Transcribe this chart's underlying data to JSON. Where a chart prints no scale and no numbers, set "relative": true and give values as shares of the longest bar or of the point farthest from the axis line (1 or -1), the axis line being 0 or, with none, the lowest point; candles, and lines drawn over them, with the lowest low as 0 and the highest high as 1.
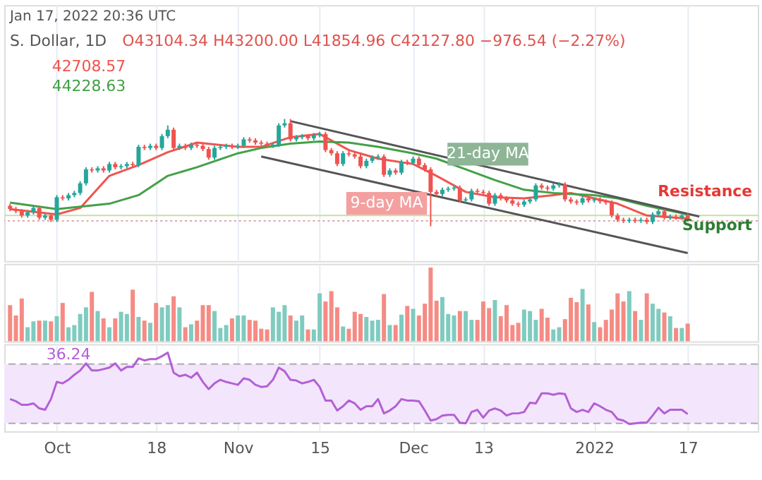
{
  "chart_data": [
    {
      "type": "candlestick",
      "relative": true,
      "grid": "x",
      "tick_labels": false,
      "xlim": [
        "2021-09-22",
        "2022-01-29"
      ],
      "xticks": [
        {
          "value": "2021-10-01",
          "label": null
        },
        {
          "value": "2021-10-18",
          "label": null
        },
        {
          "value": "2021-11-01",
          "label": null
        },
        {
          "value": "2021-11-15",
          "label": null
        },
        {
          "value": "2021-12-01",
          "label": null
        },
        {
          "value": "2021-12-13",
          "label": null
        },
        {
          "value": "2022-01-01",
          "label": null
        },
        {
          "value": "2022-01-17",
          "label": null
        }
      ],
      "x": [
        "2021-09-23",
        "2021-09-24",
        "2021-09-25",
        "2021-09-26",
        "2021-09-27",
        "2021-09-28",
        "2021-09-29",
        "2021-09-30",
        "2021-10-01",
        "2021-10-02",
        "2021-10-03",
        "2021-10-04",
        "2021-10-05",
        "2021-10-06",
        "2021-10-07",
        "2021-10-08",
        "2021-10-09",
        "2021-10-10",
        "2021-10-11",
        "2021-10-12",
        "2021-10-13",
        "2021-10-14",
        "2021-10-15",
        "2021-10-16",
        "2021-10-17",
        "2021-10-18",
        "2021-10-19",
        "2021-10-20",
        "2021-10-21",
        "2021-10-22",
        "2021-10-23",
        "2021-10-24",
        "2021-10-25",
        "2021-10-26",
        "2021-10-27",
        "2021-10-28",
        "2021-10-29",
        "2021-10-30",
        "2021-10-31",
        "2021-11-01",
        "2021-11-02",
        "2021-11-03",
        "2021-11-04",
        "2021-11-05",
        "2021-11-06",
        "2021-11-07",
        "2021-11-08",
        "2021-11-09",
        "2021-11-10",
        "2021-11-11",
        "2021-11-12",
        "2021-11-13",
        "2021-11-14",
        "2021-11-15",
        "2021-11-16",
        "2021-11-17",
        "2021-11-18",
        "2021-11-19",
        "2021-11-20",
        "2021-11-21",
        "2021-11-22",
        "2021-11-23",
        "2021-11-24",
        "2021-11-25",
        "2021-11-26",
        "2021-11-27",
        "2021-11-28",
        "2021-11-29",
        "2021-11-30",
        "2021-12-01",
        "2021-12-02",
        "2021-12-03",
        "2021-12-04",
        "2021-12-05",
        "2021-12-06",
        "2021-12-07",
        "2021-12-08",
        "2021-12-09",
        "2021-12-10",
        "2021-12-11",
        "2021-12-12",
        "2021-12-13",
        "2021-12-14",
        "2021-12-15",
        "2021-12-16",
        "2021-12-17",
        "2021-12-18",
        "2021-12-19",
        "2021-12-20",
        "2021-12-21",
        "2021-12-22",
        "2021-12-23",
        "2021-12-24",
        "2021-12-25",
        "2021-12-26",
        "2021-12-27",
        "2021-12-28",
        "2021-12-29",
        "2021-12-30",
        "2021-12-31",
        "2022-01-01",
        "2022-01-02",
        "2022-01-03",
        "2022-01-04",
        "2022-01-05",
        "2022-01-06",
        "2022-01-07",
        "2022-01-08",
        "2022-01-09",
        "2022-01-10",
        "2022-01-11",
        "2022-01-12",
        "2022-01-13",
        "2022-01-14",
        "2022-01-15",
        "2022-01-16",
        "2022-01-17"
      ],
      "ohlc": [
        [
          0.19,
          0.21,
          0.14,
          0.16
        ],
        [
          0.16,
          0.18,
          0.12,
          0.14
        ],
        [
          0.14,
          0.16,
          0.08,
          0.1
        ],
        [
          0.1,
          0.15,
          0.08,
          0.13
        ],
        [
          0.13,
          0.19,
          0.11,
          0.17
        ],
        [
          0.17,
          0.19,
          0.06,
          0.08
        ],
        [
          0.08,
          0.12,
          0.06,
          0.1
        ],
        [
          0.1,
          0.12,
          0.04,
          0.06
        ],
        [
          0.06,
          0.29,
          0.04,
          0.27
        ],
        [
          0.27,
          0.29,
          0.24,
          0.26
        ],
        [
          0.26,
          0.31,
          0.24,
          0.29
        ],
        [
          0.29,
          0.33,
          0.27,
          0.31
        ],
        [
          0.31,
          0.42,
          0.29,
          0.4
        ],
        [
          0.4,
          0.55,
          0.38,
          0.53
        ],
        [
          0.53,
          0.55,
          0.5,
          0.52
        ],
        [
          0.52,
          0.56,
          0.5,
          0.54
        ],
        [
          0.54,
          0.56,
          0.5,
          0.52
        ],
        [
          0.52,
          0.6,
          0.5,
          0.58
        ],
        [
          0.58,
          0.6,
          0.53,
          0.55
        ],
        [
          0.55,
          0.58,
          0.53,
          0.56
        ],
        [
          0.56,
          0.6,
          0.54,
          0.58
        ],
        [
          0.58,
          0.6,
          0.55,
          0.57
        ],
        [
          0.57,
          0.76,
          0.55,
          0.74
        ],
        [
          0.74,
          0.76,
          0.71,
          0.73
        ],
        [
          0.73,
          0.77,
          0.71,
          0.75
        ],
        [
          0.75,
          0.77,
          0.71,
          0.73
        ],
        [
          0.73,
          0.86,
          0.71,
          0.84
        ],
        [
          0.84,
          0.94,
          0.82,
          0.9
        ],
        [
          0.9,
          0.92,
          0.71,
          0.73
        ],
        [
          0.73,
          0.77,
          0.71,
          0.75
        ],
        [
          0.75,
          0.77,
          0.71,
          0.73
        ],
        [
          0.73,
          0.78,
          0.71,
          0.76
        ],
        [
          0.76,
          0.78,
          0.73,
          0.75
        ],
        [
          0.75,
          0.77,
          0.7,
          0.72
        ],
        [
          0.72,
          0.74,
          0.62,
          0.64
        ],
        [
          0.64,
          0.75,
          0.62,
          0.73
        ],
        [
          0.73,
          0.76,
          0.71,
          0.74
        ],
        [
          0.74,
          0.77,
          0.72,
          0.75
        ],
        [
          0.75,
          0.77,
          0.72,
          0.74
        ],
        [
          0.74,
          0.77,
          0.72,
          0.75
        ],
        [
          0.75,
          0.83,
          0.73,
          0.81
        ],
        [
          0.81,
          0.83,
          0.78,
          0.8
        ],
        [
          0.8,
          0.82,
          0.76,
          0.78
        ],
        [
          0.78,
          0.8,
          0.75,
          0.77
        ],
        [
          0.77,
          0.79,
          0.73,
          0.75
        ],
        [
          0.75,
          0.78,
          0.73,
          0.76
        ],
        [
          0.76,
          0.96,
          0.74,
          0.94
        ],
        [
          0.94,
          1.0,
          0.92,
          0.96
        ],
        [
          0.96,
          1.0,
          0.79,
          0.81
        ],
        [
          0.81,
          0.85,
          0.79,
          0.83
        ],
        [
          0.83,
          0.86,
          0.81,
          0.84
        ],
        [
          0.84,
          0.86,
          0.8,
          0.82
        ],
        [
          0.82,
          0.87,
          0.8,
          0.85
        ],
        [
          0.85,
          0.88,
          0.83,
          0.86
        ],
        [
          0.86,
          0.88,
          0.69,
          0.71
        ],
        [
          0.71,
          0.73,
          0.66,
          0.68
        ],
        [
          0.68,
          0.7,
          0.56,
          0.58
        ],
        [
          0.58,
          0.7,
          0.56,
          0.68
        ],
        [
          0.68,
          0.7,
          0.65,
          0.67
        ],
        [
          0.67,
          0.69,
          0.63,
          0.65
        ],
        [
          0.65,
          0.67,
          0.54,
          0.56
        ],
        [
          0.56,
          0.63,
          0.54,
          0.61
        ],
        [
          0.61,
          0.66,
          0.59,
          0.64
        ],
        [
          0.64,
          0.67,
          0.62,
          0.65
        ],
        [
          0.65,
          0.67,
          0.46,
          0.48
        ],
        [
          0.48,
          0.54,
          0.46,
          0.52
        ],
        [
          0.52,
          0.54,
          0.48,
          0.5
        ],
        [
          0.5,
          0.62,
          0.48,
          0.6
        ],
        [
          0.6,
          0.62,
          0.57,
          0.59
        ],
        [
          0.59,
          0.65,
          0.57,
          0.63
        ],
        [
          0.63,
          0.65,
          0.55,
          0.57
        ],
        [
          0.57,
          0.59,
          0.51,
          0.53
        ],
        [
          0.53,
          0.55,
          0,
          0.32
        ],
        [
          0.32,
          0.34,
          0.28,
          0.3
        ],
        [
          0.3,
          0.36,
          0.28,
          0.34
        ],
        [
          0.34,
          0.37,
          0.32,
          0.35
        ],
        [
          0.35,
          0.38,
          0.33,
          0.36
        ],
        [
          0.36,
          0.38,
          0.22,
          0.24
        ],
        [
          0.24,
          0.27,
          0.22,
          0.25
        ],
        [
          0.25,
          0.35,
          0.23,
          0.33
        ],
        [
          0.33,
          0.35,
          0.3,
          0.32
        ],
        [
          0.32,
          0.34,
          0.29,
          0.31
        ],
        [
          0.31,
          0.33,
          0.19,
          0.21
        ],
        [
          0.21,
          0.31,
          0.19,
          0.29
        ],
        [
          0.29,
          0.31,
          0.24,
          0.26
        ],
        [
          0.26,
          0.28,
          0.22,
          0.24
        ],
        [
          0.24,
          0.26,
          0.19,
          0.21
        ],
        [
          0.21,
          0.23,
          0.18,
          0.2
        ],
        [
          0.2,
          0.25,
          0.18,
          0.23
        ],
        [
          0.23,
          0.27,
          0.21,
          0.25
        ],
        [
          0.25,
          0.4,
          0.23,
          0.38
        ],
        [
          0.38,
          0.4,
          0.34,
          0.36
        ],
        [
          0.36,
          0.38,
          0.33,
          0.35
        ],
        [
          0.35,
          0.4,
          0.33,
          0.38
        ],
        [
          0.38,
          0.41,
          0.36,
          0.39
        ],
        [
          0.39,
          0.41,
          0.23,
          0.25
        ],
        [
          0.25,
          0.27,
          0.21,
          0.23
        ],
        [
          0.23,
          0.25,
          0.2,
          0.22
        ],
        [
          0.22,
          0.28,
          0.2,
          0.26
        ],
        [
          0.26,
          0.28,
          0.22,
          0.24
        ],
        [
          0.24,
          0.27,
          0.22,
          0.25
        ],
        [
          0.25,
          0.27,
          0.21,
          0.23
        ],
        [
          0.23,
          0.25,
          0.2,
          0.22
        ],
        [
          0.22,
          0.24,
          0.08,
          0.1
        ],
        [
          0.1,
          0.12,
          0.04,
          0.06
        ],
        [
          0.06,
          0.08,
          0.03,
          0.05
        ],
        [
          0.05,
          0.08,
          0.03,
          0.06
        ],
        [
          0.06,
          0.08,
          0.03,
          0.05
        ],
        [
          0.05,
          0.08,
          0.03,
          0.06
        ],
        [
          0.06,
          0.08,
          0.02,
          0.04
        ],
        [
          0.04,
          0.13,
          0.02,
          0.11
        ],
        [
          0.11,
          0.16,
          0.09,
          0.14
        ],
        [
          0.14,
          0.16,
          0.06,
          0.08
        ],
        [
          0.08,
          0.11,
          0.06,
          0.09
        ],
        [
          0.09,
          0.11,
          0.06,
          0.08
        ],
        [
          0.08,
          0.12,
          0.06,
          0.1
        ],
        [
          0.1,
          0.12,
          0.04,
          0.06
        ]
      ],
      "colors": [
        "#ef5350",
        "#ef5350",
        "#ef5350",
        "#26a69a",
        "#26a69a",
        "#ef5350",
        "#26a69a",
        "#ef5350",
        "#26a69a",
        "#ef5350",
        "#26a69a",
        "#26a69a",
        "#26a69a",
        "#26a69a",
        "#ef5350",
        "#26a69a",
        "#ef5350",
        "#26a69a",
        "#ef5350",
        "#26a69a",
        "#26a69a",
        "#ef5350",
        "#26a69a",
        "#ef5350",
        "#26a69a",
        "#ef5350",
        "#26a69a",
        "#26a69a",
        "#ef5350",
        "#26a69a",
        "#ef5350",
        "#26a69a",
        "#ef5350",
        "#ef5350",
        "#ef5350",
        "#26a69a",
        "#26a69a",
        "#26a69a",
        "#ef5350",
        "#26a69a",
        "#26a69a",
        "#ef5350",
        "#ef5350",
        "#ef5350",
        "#ef5350",
        "#26a69a",
        "#26a69a",
        "#26a69a",
        "#ef5350",
        "#26a69a",
        "#26a69a",
        "#ef5350",
        "#26a69a",
        "#26a69a",
        "#ef5350",
        "#ef5350",
        "#ef5350",
        "#26a69a",
        "#ef5350",
        "#ef5350",
        "#ef5350",
        "#26a69a",
        "#26a69a",
        "#26a69a",
        "#ef5350",
        "#26a69a",
        "#ef5350",
        "#26a69a",
        "#ef5350",
        "#26a69a",
        "#ef5350",
        "#ef5350",
        "#ef5350",
        "#ef5350",
        "#26a69a",
        "#26a69a",
        "#26a69a",
        "#ef5350",
        "#26a69a",
        "#26a69a",
        "#ef5350",
        "#ef5350",
        "#ef5350",
        "#26a69a",
        "#ef5350",
        "#ef5350",
        "#ef5350",
        "#ef5350",
        "#26a69a",
        "#26a69a",
        "#26a69a",
        "#ef5350",
        "#ef5350",
        "#26a69a",
        "#26a69a",
        "#ef5350",
        "#ef5350",
        "#ef5350",
        "#26a69a",
        "#ef5350",
        "#26a69a",
        "#ef5350",
        "#ef5350",
        "#ef5350",
        "#ef5350",
        "#ef5350",
        "#26a69a",
        "#ef5350",
        "#26a69a",
        "#ef5350",
        "#26a69a",
        "#26a69a",
        "#ef5350",
        "#26a69a",
        "#ef5350",
        "#26a69a",
        "#ef5350"
      ],
      "series": [
        {
          "type": "line",
          "name": "42708.57",
          "color": "#f0544f",
          "x": [
            "2021-09-23",
            "2021-10-01",
            "2021-10-05",
            "2021-10-10",
            "2021-10-15",
            "2021-10-20",
            "2021-10-25",
            "2021-11-01",
            "2021-11-05",
            "2021-11-10",
            "2021-11-15",
            "2021-11-20",
            "2021-11-25",
            "2021-12-01",
            "2021-12-05",
            "2021-12-10",
            "2021-12-15",
            "2021-12-20",
            "2021-12-25",
            "2021-12-28",
            "2022-01-01",
            "2022-01-05",
            "2022-01-10",
            "2022-01-17"
          ],
          "values": [
            0.16,
            0.11,
            0.17,
            0.47,
            0.57,
            0.69,
            0.78,
            0.74,
            0.74,
            0.83,
            0.86,
            0.71,
            0.63,
            0.58,
            0.47,
            0.32,
            0.27,
            0.26,
            0.29,
            0.31,
            0.26,
            0.21,
            0.1,
            0.07
          ]
        },
        {
          "type": "line",
          "name": "44228.63",
          "color": "#43a047",
          "x": [
            "2021-09-23",
            "2021-10-01",
            "2021-10-10",
            "2021-10-15",
            "2021-10-20",
            "2021-10-25",
            "2021-11-01",
            "2021-11-05",
            "2021-11-10",
            "2021-11-15",
            "2021-11-20",
            "2021-11-25",
            "2021-12-01",
            "2021-12-05",
            "2021-12-10",
            "2021-12-15",
            "2021-12-20",
            "2021-12-25",
            "2022-01-01",
            "2022-01-05",
            "2022-01-10",
            "2022-01-17"
          ],
          "values": [
            0.22,
            0.16,
            0.21,
            0.29,
            0.47,
            0.55,
            0.68,
            0.73,
            0.77,
            0.79,
            0.78,
            0.74,
            0.68,
            0.63,
            0.53,
            0.43,
            0.34,
            0.31,
            0.29,
            0.26,
            0.19,
            0.11
          ]
        },
        {
          "type": "line",
          "color": "#555555",
          "x": [
            "2021-11-10",
            "2022-01-19"
          ],
          "values": [
            0.98,
            0.09
          ]
        },
        {
          "type": "line",
          "color": "#555555",
          "x": [
            "2021-11-05",
            "2022-01-17"
          ],
          "values": [
            0.65,
            -0.25
          ]
        }
      ],
      "ref_lines": [
        {
          "axis": "y",
          "value": 0.1,
          "color": "#c5e1a5"
        },
        {
          "axis": "y",
          "value": 0.05,
          "color": "#d99a9a",
          "line_style": "dotted"
        }
      ],
      "annotations": [
        "Jan 17, 2022 20:36 UTC",
        "S. Dollar, 1D",
        "O43104.34 H43200.00 L41854.96 C42127.80 −976.54 (−2.27%)",
        "21-day MA",
        "9-day MA",
        "Resistance",
        "Support"
      ]
    },
    {
      "type": "bar",
      "relative": true,
      "grid": "x",
      "tick_labels": false,
      "xlim": [
        "2021-09-22",
        "2022-01-29"
      ],
      "xticks": [
        {
          "value": "2021-10-01",
          "label": null
        },
        {
          "value": "2021-10-18",
          "label": null
        },
        {
          "value": "2021-11-01",
          "label": null
        },
        {
          "value": "2021-11-15",
          "label": null
        },
        {
          "value": "2021-12-01",
          "label": null
        },
        {
          "value": "2021-12-13",
          "label": null
        },
        {
          "value": "2022-01-01",
          "label": null
        },
        {
          "value": "2022-01-17",
          "label": null
        }
      ],
      "x": [
        "2021-09-23",
        "2021-09-24",
        "2021-09-25",
        "2021-09-26",
        "2021-09-27",
        "2021-09-28",
        "2021-09-29",
        "2021-09-30",
        "2021-10-01",
        "2021-10-02",
        "2021-10-03",
        "2021-10-04",
        "2021-10-05",
        "2021-10-06",
        "2021-10-07",
        "2021-10-08",
        "2021-10-09",
        "2021-10-10",
        "2021-10-11",
        "2021-10-12",
        "2021-10-13",
        "2021-10-14",
        "2021-10-15",
        "2021-10-16",
        "2021-10-17",
        "2021-10-18",
        "2021-10-19",
        "2021-10-20",
        "2021-10-21",
        "2021-10-22",
        "2021-10-23",
        "2021-10-24",
        "2021-10-25",
        "2021-10-26",
        "2021-10-27",
        "2021-10-28",
        "2021-10-29",
        "2021-10-30",
        "2021-10-31",
        "2021-11-01",
        "2021-11-02",
        "2021-11-03",
        "2021-11-04",
        "2021-11-05",
        "2021-11-06",
        "2021-11-07",
        "2021-11-08",
        "2021-11-09",
        "2021-11-10",
        "2021-11-11",
        "2021-11-12",
        "2021-11-13",
        "2021-11-14",
        "2021-11-15",
        "2021-11-16",
        "2021-11-17",
        "2021-11-18",
        "2021-11-19",
        "2021-11-20",
        "2021-11-21",
        "2021-11-22",
        "2021-11-23",
        "2021-11-24",
        "2021-11-25",
        "2021-11-26",
        "2021-11-27",
        "2021-11-28",
        "2021-11-29",
        "2021-11-30",
        "2021-12-01",
        "2021-12-02",
        "2021-12-03",
        "2021-12-04",
        "2021-12-05",
        "2021-12-06",
        "2021-12-07",
        "2021-12-08",
        "2021-12-09",
        "2021-12-10",
        "2021-12-11",
        "2021-12-12",
        "2021-12-13",
        "2021-12-14",
        "2021-12-15",
        "2021-12-16",
        "2021-12-17",
        "2021-12-18",
        "2021-12-19",
        "2021-12-20",
        "2021-12-21",
        "2021-12-22",
        "2021-12-23",
        "2021-12-24",
        "2021-12-25",
        "2021-12-26",
        "2021-12-27",
        "2021-12-28",
        "2021-12-29",
        "2021-12-30",
        "2021-12-31",
        "2022-01-01",
        "2022-01-02",
        "2022-01-03",
        "2022-01-04",
        "2022-01-05",
        "2022-01-06",
        "2022-01-07",
        "2022-01-08",
        "2022-01-09",
        "2022-01-10",
        "2022-01-11",
        "2022-01-12",
        "2022-01-13",
        "2022-01-14",
        "2022-01-15",
        "2022-01-16",
        "2022-01-17"
      ],
      "values": [
        0.49,
        0.35,
        0.58,
        0.19,
        0.27,
        0.28,
        0.28,
        0.27,
        0.34,
        0.52,
        0.19,
        0.22,
        0.37,
        0.46,
        0.67,
        0.41,
        0.31,
        0.19,
        0.31,
        0.4,
        0.37,
        0.7,
        0.33,
        0.28,
        0.25,
        0.52,
        0.46,
        0.49,
        0.61,
        0.46,
        0.19,
        0.23,
        0.28,
        0.49,
        0.49,
        0.41,
        0.18,
        0.22,
        0.31,
        0.35,
        0.35,
        0.29,
        0.28,
        0.17,
        0.16,
        0.46,
        0.4,
        0.49,
        0.35,
        0.28,
        0.35,
        0.16,
        0.16,
        0.65,
        0.54,
        0.68,
        0.46,
        0.2,
        0.17,
        0.4,
        0.37,
        0.33,
        0.28,
        0.29,
        0.64,
        0.22,
        0.22,
        0.36,
        0.48,
        0.44,
        0.35,
        0.51,
        1.0,
        0.55,
        0.6,
        0.37,
        0.35,
        0.41,
        0.41,
        0.29,
        0.29,
        0.54,
        0.45,
        0.56,
        0.34,
        0.49,
        0.22,
        0.25,
        0.43,
        0.41,
        0.29,
        0.44,
        0.32,
        0.16,
        0.19,
        0.3,
        0.59,
        0.53,
        0.71,
        0.5,
        0.26,
        0.19,
        0.29,
        0.43,
        0.65,
        0.54,
        0.68,
        0.41,
        0.29,
        0.65,
        0.51,
        0.44,
        0.39,
        0.34,
        0.18,
        0.18,
        0.24
      ],
      "colors": [
        "#f58b84",
        "#f58b84",
        "#f58b84",
        "#7fcbbf",
        "#7fcbbf",
        "#f58b84",
        "#7fcbbf",
        "#f58b84",
        "#7fcbbf",
        "#f58b84",
        "#7fcbbf",
        "#7fcbbf",
        "#7fcbbf",
        "#7fcbbf",
        "#f58b84",
        "#7fcbbf",
        "#f58b84",
        "#7fcbbf",
        "#f58b84",
        "#7fcbbf",
        "#7fcbbf",
        "#f58b84",
        "#7fcbbf",
        "#f58b84",
        "#7fcbbf",
        "#f58b84",
        "#7fcbbf",
        "#7fcbbf",
        "#f58b84",
        "#7fcbbf",
        "#f58b84",
        "#7fcbbf",
        "#f58b84",
        "#f58b84",
        "#f58b84",
        "#7fcbbf",
        "#7fcbbf",
        "#7fcbbf",
        "#f58b84",
        "#7fcbbf",
        "#7fcbbf",
        "#f58b84",
        "#f58b84",
        "#f58b84",
        "#f58b84",
        "#7fcbbf",
        "#7fcbbf",
        "#7fcbbf",
        "#f58b84",
        "#7fcbbf",
        "#7fcbbf",
        "#f58b84",
        "#7fcbbf",
        "#7fcbbf",
        "#f58b84",
        "#f58b84",
        "#f58b84",
        "#7fcbbf",
        "#f58b84",
        "#f58b84",
        "#f58b84",
        "#7fcbbf",
        "#7fcbbf",
        "#7fcbbf",
        "#f58b84",
        "#7fcbbf",
        "#f58b84",
        "#7fcbbf",
        "#f58b84",
        "#7fcbbf",
        "#f58b84",
        "#f58b84",
        "#f58b84",
        "#f58b84",
        "#7fcbbf",
        "#7fcbbf",
        "#7fcbbf",
        "#f58b84",
        "#7fcbbf",
        "#7fcbbf",
        "#f58b84",
        "#f58b84",
        "#f58b84",
        "#7fcbbf",
        "#f58b84",
        "#f58b84",
        "#f58b84",
        "#f58b84",
        "#7fcbbf",
        "#7fcbbf",
        "#7fcbbf",
        "#f58b84",
        "#f58b84",
        "#7fcbbf",
        "#7fcbbf",
        "#f58b84",
        "#f58b84",
        "#f58b84",
        "#7fcbbf",
        "#f58b84",
        "#7fcbbf",
        "#f58b84",
        "#f58b84",
        "#f58b84",
        "#f58b84",
        "#f58b84",
        "#7fcbbf",
        "#f58b84",
        "#7fcbbf",
        "#f58b84",
        "#7fcbbf",
        "#7fcbbf",
        "#f58b84",
        "#7fcbbf",
        "#f58b84",
        "#7fcbbf",
        "#f58b84"
      ]
    },
    {
      "type": "line",
      "relative": true,
      "grid": "x",
      "tick_labels": "x",
      "xlim": [
        "2021-09-22",
        "2022-01-29"
      ],
      "xticks": [
        {
          "value": "2021-10-01",
          "label": "Oct"
        },
        {
          "value": "2021-10-18",
          "label": "18"
        },
        {
          "value": "2021-11-01",
          "label": "Nov"
        },
        {
          "value": "2021-11-15",
          "label": "15"
        },
        {
          "value": "2021-12-01",
          "label": "Dec"
        },
        {
          "value": "2021-12-13",
          "label": "13"
        },
        {
          "value": "2022-01-01",
          "label": "2022"
        },
        {
          "value": "2022-01-17",
          "label": "17"
        }
      ],
      "x": [
        "2021-09-23",
        "2021-09-24",
        "2021-09-25",
        "2021-09-26",
        "2021-09-27",
        "2021-09-28",
        "2021-09-29",
        "2021-09-30",
        "2021-10-01",
        "2021-10-02",
        "2021-10-03",
        "2021-10-04",
        "2021-10-05",
        "2021-10-06",
        "2021-10-07",
        "2021-10-08",
        "2021-10-09",
        "2021-10-10",
        "2021-10-11",
        "2021-10-12",
        "2021-10-13",
        "2021-10-14",
        "2021-10-15",
        "2021-10-16",
        "2021-10-17",
        "2021-10-18",
        "2021-10-19",
        "2021-10-20",
        "2021-10-21",
        "2021-10-22",
        "2021-10-23",
        "2021-10-24",
        "2021-10-25",
        "2021-10-26",
        "2021-10-27",
        "2021-10-28",
        "2021-10-29",
        "2021-10-30",
        "2021-10-31",
        "2021-11-01",
        "2021-11-02",
        "2021-11-03",
        "2021-11-04",
        "2021-11-05",
        "2021-11-06",
        "2021-11-07",
        "2021-11-08",
        "2021-11-09",
        "2021-11-10",
        "2021-11-11",
        "2021-11-12",
        "2021-11-13",
        "2021-11-14",
        "2021-11-15",
        "2021-11-16",
        "2021-11-17",
        "2021-11-18",
        "2021-11-19",
        "2021-11-20",
        "2021-11-21",
        "2021-11-22",
        "2021-11-23",
        "2021-11-24",
        "2021-11-25",
        "2021-11-26",
        "2021-11-27",
        "2021-11-28",
        "2021-11-29",
        "2021-11-30",
        "2021-12-01",
        "2021-12-02",
        "2021-12-03",
        "2021-12-04",
        "2021-12-05",
        "2021-12-06",
        "2021-12-07",
        "2021-12-08",
        "2021-12-09",
        "2021-12-10",
        "2021-12-11",
        "2021-12-12",
        "2021-12-13",
        "2021-12-14",
        "2021-12-15",
        "2021-12-16",
        "2021-12-17",
        "2021-12-18",
        "2021-12-19",
        "2021-12-20",
        "2021-12-21",
        "2021-12-22",
        "2021-12-23",
        "2021-12-24",
        "2021-12-25",
        "2021-12-26",
        "2021-12-27",
        "2021-12-28",
        "2021-12-29",
        "2021-12-30",
        "2021-12-31",
        "2022-01-01",
        "2022-01-02",
        "2022-01-03",
        "2022-01-04",
        "2022-01-05",
        "2022-01-06",
        "2022-01-07",
        "2022-01-08",
        "2022-01-09",
        "2022-01-10",
        "2022-01-11",
        "2022-01-12",
        "2022-01-13",
        "2022-01-14",
        "2022-01-15",
        "2022-01-16",
        "2022-01-17"
      ],
      "series": [
        {
          "name": "36.24",
          "color": "#b45fd6",
          "values": [
            0.35,
            0.32,
            0.27,
            0.27,
            0.29,
            0.22,
            0.2,
            0.35,
            0.59,
            0.57,
            0.62,
            0.69,
            0.75,
            0.85,
            0.75,
            0.75,
            0.77,
            0.79,
            0.85,
            0.75,
            0.8,
            0.8,
            0.92,
            0.89,
            0.91,
            0.91,
            0.95,
            1.0,
            0.72,
            0.67,
            0.69,
            0.65,
            0.72,
            0.59,
            0.49,
            0.57,
            0.62,
            0.59,
            0.57,
            0.55,
            0.64,
            0.62,
            0.55,
            0.52,
            0.53,
            0.62,
            0.79,
            0.74,
            0.62,
            0.61,
            0.57,
            0.59,
            0.62,
            0.52,
            0.33,
            0.33,
            0.19,
            0.25,
            0.33,
            0.29,
            0.2,
            0.25,
            0.25,
            0.35,
            0.15,
            0.19,
            0.25,
            0.35,
            0.33,
            0.33,
            0.32,
            0.19,
            0.05,
            0.07,
            0.12,
            0.13,
            0.13,
            0.02,
            0.01,
            0.17,
            0.2,
            0.09,
            0.19,
            0.22,
            0.19,
            0.12,
            0.15,
            0.15,
            0.17,
            0.3,
            0.29,
            0.43,
            0.43,
            0.41,
            0.43,
            0.42,
            0.22,
            0.17,
            0.2,
            0.17,
            0.29,
            0.25,
            0.2,
            0.17,
            0.07,
            0.05,
            0,
            0.01,
            0.02,
            0.02,
            0.12,
            0.23,
            0.15,
            0.2,
            0.2,
            0.2,
            0.14
          ]
        }
      ],
      "bands": [
        {
          "axis": "y",
          "from": 0.01,
          "to": 0.84,
          "color": "#f3e6fc"
        }
      ],
      "ref_lines": [
        {
          "axis": "y",
          "value": 0.84,
          "color": "#aaaaaa",
          "line_style": "dashed"
        },
        {
          "axis": "y",
          "value": 0.01,
          "color": "#aaaaaa",
          "line_style": "dashed"
        }
      ]
    }
  ]
}
